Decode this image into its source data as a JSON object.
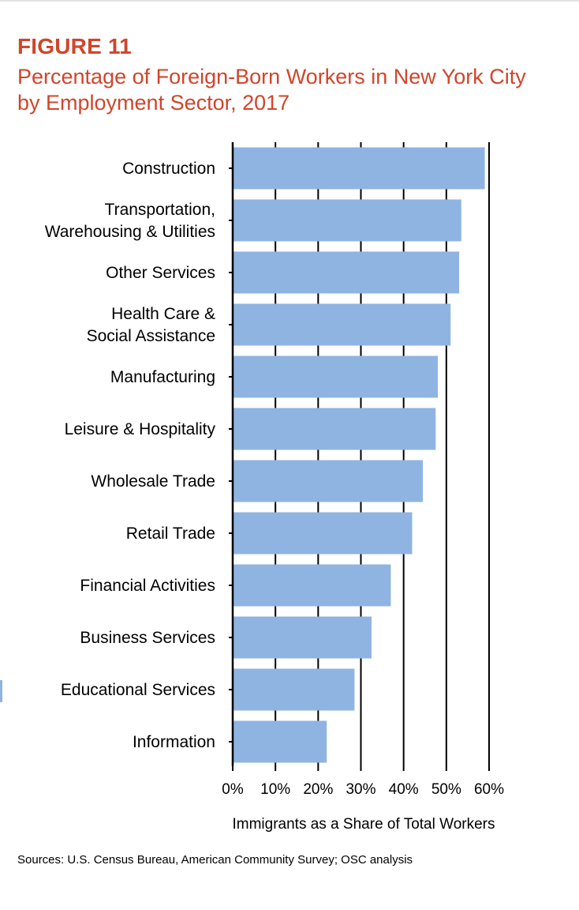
{
  "figure": {
    "label": "FIGURE 11",
    "title": "Percentage of Foreign-Born Workers in New York City by Employment Sector, 2017",
    "source": "Sources: U.S. Census Bureau, American Community Survey; OSC analysis"
  },
  "chart_data": {
    "type": "bar",
    "orientation": "horizontal",
    "title": "Percentage of Foreign-Born Workers in New York City by Employment Sector, 2017",
    "xlabel": "Immigrants as a Share of Total Workers",
    "ylabel": "",
    "categories": [
      [
        "Construction"
      ],
      [
        "Transportation,",
        "Warehousing & Utilities"
      ],
      [
        "Other Services"
      ],
      [
        "Health Care &",
        "Social Assistance"
      ],
      [
        "Manufacturing"
      ],
      [
        "Leisure & Hospitality"
      ],
      [
        "Wholesale Trade"
      ],
      [
        "Retail Trade"
      ],
      [
        "Financial Activities"
      ],
      [
        "Business Services"
      ],
      [
        "Educational Services"
      ],
      [
        "Information"
      ]
    ],
    "values": [
      59,
      53.5,
      53,
      51,
      48,
      47.5,
      44.5,
      42,
      37,
      32.5,
      28.5,
      22
    ],
    "value_unit": "%",
    "xlim": [
      0,
      60
    ],
    "xticks": [
      "0%",
      "10%",
      "20%",
      "30%",
      "40%",
      "50%",
      "60%"
    ],
    "grid": "vertical gridlines at each 10%",
    "legend": "none",
    "bar_color": "#8fb4e2",
    "grid_color": "#000000"
  }
}
